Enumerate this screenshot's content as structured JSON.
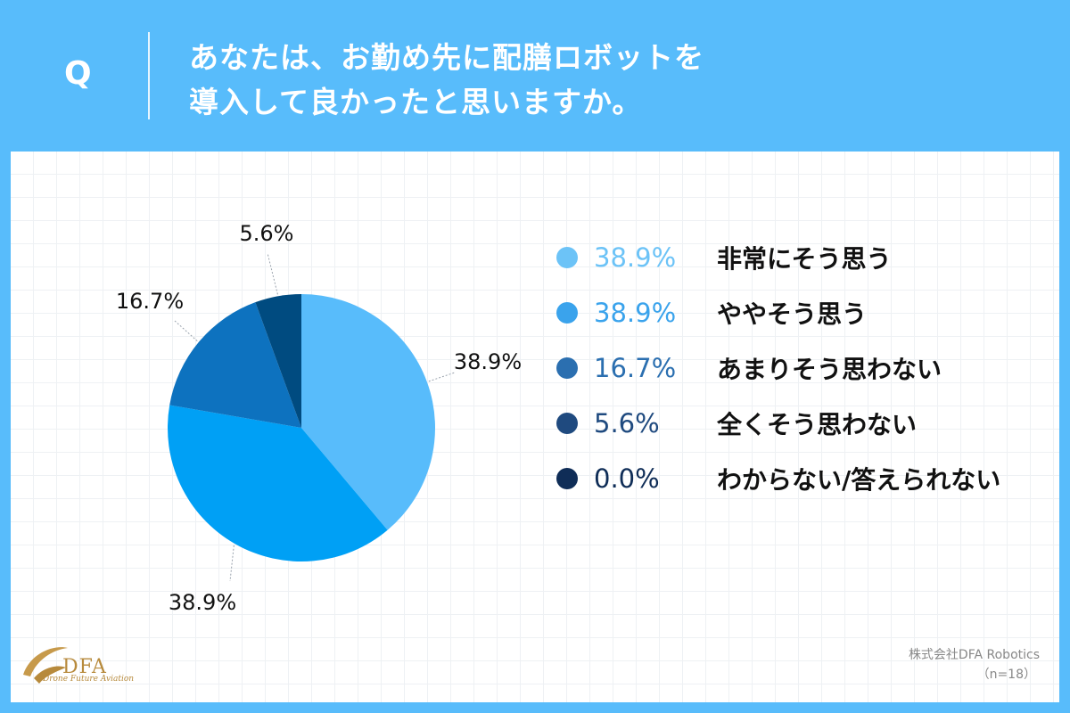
{
  "question": {
    "marker": "Q",
    "line1": "あなたは、お勤め先に配膳ロボットを",
    "line2": "導入して良かったと思いますか。"
  },
  "chart_data": {
    "type": "pie",
    "slices": [
      {
        "label": "非常にそう思う",
        "value": 38.9,
        "display": "38.9%",
        "color": "#58bcfb"
      },
      {
        "label": "ややそう思う",
        "value": 38.9,
        "display": "38.9%",
        "color": "#00a0f5"
      },
      {
        "label": "あまりそう思わない",
        "value": 16.7,
        "display": "16.7%",
        "color": "#0d72bf"
      },
      {
        "label": "全くそう思わない",
        "value": 5.6,
        "display": "5.6%",
        "color": "#004b80"
      },
      {
        "label": "わからない/答えられない",
        "value": 0.0,
        "display": "0.0%",
        "color": "#0d2f5c"
      }
    ],
    "legend_placement": "right"
  },
  "legend_colors": [
    "#6cc3f7",
    "#3aa3ec",
    "#2b6fb0",
    "#1f4a7f",
    "#0f2d57"
  ],
  "footer": {
    "logo_text": "DFA",
    "logo_subtitle": "Drone Future Aviation",
    "company": "株式会社DFA Robotics",
    "sample": "（n=18）"
  }
}
